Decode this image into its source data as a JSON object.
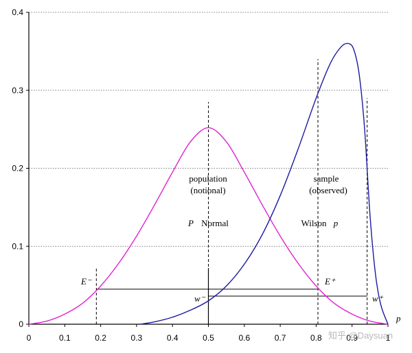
{
  "chart_data": {
    "type": "line",
    "title": "",
    "xlabel": "p",
    "ylabel": "",
    "xlim": [
      0,
      1
    ],
    "ylim": [
      0,
      0.4
    ],
    "x_ticks": [
      "0",
      "0.1",
      "0.2",
      "0.3",
      "0.4",
      "0.5",
      "0.6",
      "0.7",
      "0.8",
      "0.9",
      "1"
    ],
    "y_ticks": [
      "0",
      "0.1",
      "0.2",
      "0.3",
      "0.4"
    ],
    "grid": "horizontal dotted",
    "series": [
      {
        "name": "Normal (population, notional)",
        "color": "#e020d0",
        "points": [
          [
            0,
            0
          ],
          [
            0.05,
            0.004
          ],
          [
            0.1,
            0.013
          ],
          [
            0.15,
            0.027
          ],
          [
            0.2,
            0.049
          ],
          [
            0.25,
            0.078
          ],
          [
            0.3,
            0.113
          ],
          [
            0.35,
            0.153
          ],
          [
            0.4,
            0.195
          ],
          [
            0.45,
            0.234
          ],
          [
            0.5,
            0.252
          ],
          [
            0.55,
            0.234
          ],
          [
            0.6,
            0.195
          ],
          [
            0.65,
            0.153
          ],
          [
            0.7,
            0.113
          ],
          [
            0.75,
            0.078
          ],
          [
            0.8,
            0.049
          ],
          [
            0.85,
            0.027
          ],
          [
            0.9,
            0.013
          ],
          [
            0.95,
            0.004
          ],
          [
            1,
            0
          ]
        ]
      },
      {
        "name": "Wilson (sample, observed)",
        "color": "#1a1aa0",
        "points": [
          [
            0.31,
            0
          ],
          [
            0.35,
            0.003
          ],
          [
            0.4,
            0.009
          ],
          [
            0.45,
            0.018
          ],
          [
            0.5,
            0.03
          ],
          [
            0.55,
            0.049
          ],
          [
            0.6,
            0.077
          ],
          [
            0.65,
            0.115
          ],
          [
            0.7,
            0.165
          ],
          [
            0.75,
            0.225
          ],
          [
            0.8,
            0.29
          ],
          [
            0.84,
            0.335
          ],
          [
            0.87,
            0.356
          ],
          [
            0.89,
            0.36
          ],
          [
            0.905,
            0.352
          ],
          [
            0.92,
            0.32
          ],
          [
            0.935,
            0.25
          ],
          [
            0.95,
            0.14
          ],
          [
            0.965,
            0.065
          ],
          [
            0.98,
            0.025
          ],
          [
            1,
            0
          ]
        ]
      }
    ],
    "dashed_lines": [
      {
        "x": 0.188,
        "y_top": 0.072
      },
      {
        "x": 0.5,
        "y_top": 0.285
      },
      {
        "x": 0.805,
        "y_top": 0.34
      },
      {
        "x": 0.942,
        "y_top": 0.29
      }
    ],
    "solid_lines": [
      {
        "x": 0.5,
        "y_top": 0.072
      }
    ],
    "intervals": [
      {
        "x1": 0.188,
        "x2": 0.805,
        "y": 0.045
      },
      {
        "x1": 0.5,
        "x2": 0.942,
        "y": 0.036
      }
    ],
    "annotations": {
      "population": "population",
      "notional": "(notional)",
      "p_upper": "P",
      "normal": "Normal",
      "sample": "sample",
      "observed": "(observed)",
      "wilson": "Wilson",
      "p_lower": "p",
      "e_minus": "E⁻",
      "e_plus": "E⁺",
      "w_minus": "w⁻",
      "w_plus": "w⁺"
    },
    "watermark": "知乎 @Daysuan"
  }
}
